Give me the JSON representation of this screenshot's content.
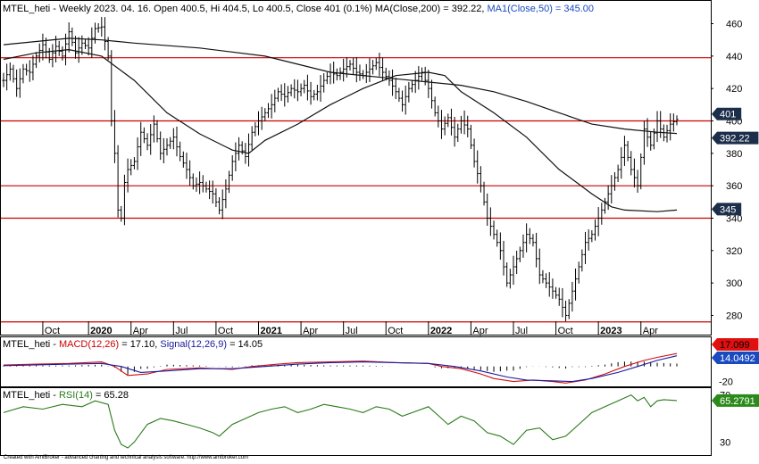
{
  "title": {
    "prefix": "MTEL_heti - Weekly 2023. 04. 16. Open 400.5, Hi 404.5, Lo 400.5, Close 401 (0.1%) ",
    "ma200": "MA(Close,200) = 392.22,",
    "ma50": " MA1(Close,50) = 345.00"
  },
  "macd_title": {
    "prefix": "MTEL_heti - ",
    "macd": "MACD(12,26)",
    "mid": " = 17.10, ",
    "signal": "Signal(12,26,9)",
    "suffix": " = 14.05"
  },
  "rsi_title": {
    "prefix": "MTEL_heti - ",
    "rsi": "RSI(14)",
    "suffix": " = 65.28"
  },
  "footer": "Created with AmiBroker - advanced charting and technical analysis software. http://www.amibroker.com",
  "colors": {
    "price": "#000000",
    "ma": "#111111",
    "hline": "#cc0000",
    "macd": "#d01010",
    "signal": "#1a1aa0",
    "rsi": "#2a7a1a",
    "tag_dark": "#1c2e4a",
    "tag_red": "#e01010",
    "tag_blue": "#1a4ac0",
    "tag_green": "#2a8a1a"
  },
  "chart_data": [
    {
      "type": "candlestick",
      "panel": "price",
      "title": "MTEL_heti - Weekly 2023. 04. 16. Open 400.5, Hi 404.5, Lo 400.5, Close 401 (0.1%) MA(Close,200) = 392.22, MA1(Close,50) = 345.00",
      "ylim": [
        272,
        468
      ],
      "yticks": [
        280,
        300,
        320,
        340,
        360,
        380,
        400,
        420,
        440,
        460
      ],
      "x_labels": [
        "Oct",
        "2020",
        "Apr",
        "Jul",
        "Oct",
        "2021",
        "Apr",
        "Jul",
        "Oct",
        "2022",
        "Apr",
        "Jul",
        "Oct",
        "2023",
        "Apr"
      ],
      "x_label_bold": [
        "2020",
        "2021",
        "2022",
        "2023"
      ],
      "horizontal_lines": [
        439,
        400,
        360,
        340,
        276
      ],
      "close": [
        [
          0,
          425
        ],
        [
          2,
          432
        ],
        [
          4,
          420
        ],
        [
          6,
          432
        ],
        [
          8,
          430
        ],
        [
          10,
          440
        ],
        [
          12,
          447
        ],
        [
          14,
          438
        ],
        [
          16,
          446
        ],
        [
          18,
          440
        ],
        [
          20,
          455
        ],
        [
          22,
          442
        ],
        [
          24,
          448
        ],
        [
          26,
          445
        ],
        [
          28,
          457
        ],
        [
          30,
          458
        ],
        [
          32,
          440
        ],
        [
          33,
          400
        ],
        [
          34,
          380
        ],
        [
          35,
          345
        ],
        [
          36,
          340
        ],
        [
          37,
          362
        ],
        [
          38,
          370
        ],
        [
          40,
          375
        ],
        [
          42,
          393
        ],
        [
          44,
          385
        ],
        [
          46,
          398
        ],
        [
          48,
          380
        ],
        [
          50,
          385
        ],
        [
          52,
          390
        ],
        [
          54,
          378
        ],
        [
          56,
          370
        ],
        [
          58,
          360
        ],
        [
          60,
          362
        ],
        [
          62,
          358
        ],
        [
          64,
          355
        ],
        [
          66,
          345
        ],
        [
          68,
          358
        ],
        [
          70,
          375
        ],
        [
          72,
          385
        ],
        [
          74,
          378
        ],
        [
          76,
          393
        ],
        [
          78,
          400
        ],
        [
          80,
          405
        ],
        [
          82,
          410
        ],
        [
          84,
          418
        ],
        [
          86,
          415
        ],
        [
          88,
          420
        ],
        [
          90,
          418
        ],
        [
          92,
          422
        ],
        [
          94,
          415
        ],
        [
          96,
          418
        ],
        [
          98,
          425
        ],
        [
          100,
          430
        ],
        [
          102,
          428
        ],
        [
          104,
          432
        ],
        [
          106,
          435
        ],
        [
          108,
          430
        ],
        [
          110,
          428
        ],
        [
          112,
          432
        ],
        [
          114,
          436
        ],
        [
          116,
          430
        ],
        [
          118,
          425
        ],
        [
          120,
          418
        ],
        [
          122,
          410
        ],
        [
          124,
          420
        ],
        [
          126,
          425
        ],
        [
          128,
          430
        ],
        [
          130,
          420
        ],
        [
          132,
          405
        ],
        [
          134,
          395
        ],
        [
          136,
          402
        ],
        [
          138,
          390
        ],
        [
          140,
          400
        ],
        [
          142,
          395
        ],
        [
          144,
          375
        ],
        [
          146,
          360
        ],
        [
          148,
          340
        ],
        [
          150,
          330
        ],
        [
          152,
          320
        ],
        [
          154,
          300
        ],
        [
          156,
          310
        ],
        [
          158,
          320
        ],
        [
          160,
          330
        ],
        [
          162,
          325
        ],
        [
          164,
          305
        ],
        [
          166,
          300
        ],
        [
          168,
          295
        ],
        [
          170,
          290
        ],
        [
          172,
          280
        ],
        [
          174,
          295
        ],
        [
          176,
          310
        ],
        [
          178,
          325
        ],
        [
          180,
          330
        ],
        [
          182,
          340
        ],
        [
          184,
          350
        ],
        [
          186,
          360
        ],
        [
          188,
          370
        ],
        [
          190,
          385
        ],
        [
          192,
          370
        ],
        [
          194,
          360
        ],
        [
          196,
          395
        ],
        [
          198,
          385
        ],
        [
          200,
          400
        ],
        [
          202,
          390
        ],
        [
          204,
          398
        ],
        [
          206,
          401
        ]
      ],
      "series": [
        {
          "name": "MA(Close,200)",
          "values": [
            [
              0,
              447
            ],
            [
              10,
              449
            ],
            [
              20,
              451
            ],
            [
              30,
              450
            ],
            [
              40,
              448
            ],
            [
              60,
              445
            ],
            [
              80,
              440
            ],
            [
              100,
              430
            ],
            [
              120,
              426
            ],
            [
              140,
              422
            ],
            [
              150,
              418
            ],
            [
              160,
              412
            ],
            [
              170,
              405
            ],
            [
              180,
              398
            ],
            [
              190,
              395
            ],
            [
              200,
              393
            ],
            [
              206,
              392.22
            ]
          ]
        },
        {
          "name": "MA1(Close,50)",
          "values": [
            [
              0,
              438
            ],
            [
              10,
              442
            ],
            [
              20,
              444
            ],
            [
              30,
              440
            ],
            [
              40,
              425
            ],
            [
              50,
              405
            ],
            [
              60,
              392
            ],
            [
              70,
              382
            ],
            [
              75,
              380
            ],
            [
              80,
              388
            ],
            [
              90,
              398
            ],
            [
              100,
              410
            ],
            [
              110,
              420
            ],
            [
              120,
              428
            ],
            [
              130,
              430
            ],
            [
              135,
              428
            ],
            [
              140,
              418
            ],
            [
              150,
              405
            ],
            [
              160,
              390
            ],
            [
              170,
              370
            ],
            [
              180,
              355
            ],
            [
              186,
              347
            ],
            [
              190,
              345
            ],
            [
              200,
              344
            ],
            [
              206,
              345
            ]
          ]
        }
      ],
      "tags": [
        {
          "label": "401",
          "value": 401
        },
        {
          "label": "392.22",
          "value": 392.22
        },
        {
          "label": "345",
          "value": 345
        }
      ]
    },
    {
      "type": "line",
      "panel": "macd",
      "title": "MTEL_heti - MACD(12,26) = 17.10, Signal(12,26,9) = 14.05",
      "ylim": [
        -24,
        22
      ],
      "yticks": [
        -20
      ],
      "series": [
        {
          "name": "MACD(12,26)",
          "values": [
            [
              0,
              2
            ],
            [
              10,
              3
            ],
            [
              20,
              4
            ],
            [
              30,
              6
            ],
            [
              34,
              0
            ],
            [
              38,
              -12
            ],
            [
              44,
              -10
            ],
            [
              50,
              -4
            ],
            [
              60,
              -2
            ],
            [
              70,
              -4
            ],
            [
              76,
              0
            ],
            [
              84,
              3
            ],
            [
              90,
              5
            ],
            [
              100,
              6
            ],
            [
              110,
              7
            ],
            [
              120,
              5
            ],
            [
              130,
              4
            ],
            [
              134,
              0
            ],
            [
              140,
              -3
            ],
            [
              146,
              -10
            ],
            [
              150,
              -16
            ],
            [
              156,
              -20
            ],
            [
              162,
              -18
            ],
            [
              168,
              -20
            ],
            [
              172,
              -22
            ],
            [
              178,
              -18
            ],
            [
              184,
              -10
            ],
            [
              190,
              0
            ],
            [
              196,
              8
            ],
            [
              200,
              12
            ],
            [
              206,
              17.1
            ]
          ]
        },
        {
          "name": "Signal(12,26,9)",
          "values": [
            [
              0,
              1
            ],
            [
              10,
              2
            ],
            [
              20,
              3
            ],
            [
              30,
              4
            ],
            [
              36,
              0
            ],
            [
              42,
              -8
            ],
            [
              50,
              -6
            ],
            [
              60,
              -3
            ],
            [
              70,
              -3
            ],
            [
              80,
              0
            ],
            [
              90,
              3
            ],
            [
              100,
              5
            ],
            [
              110,
              6
            ],
            [
              120,
              5
            ],
            [
              130,
              4
            ],
            [
              138,
              0
            ],
            [
              146,
              -6
            ],
            [
              154,
              -14
            ],
            [
              160,
              -18
            ],
            [
              168,
              -19
            ],
            [
              174,
              -20
            ],
            [
              180,
              -16
            ],
            [
              188,
              -8
            ],
            [
              194,
              0
            ],
            [
              200,
              8
            ],
            [
              206,
              14.05
            ]
          ]
        }
      ],
      "tags": [
        {
          "label": "17.099",
          "value": 17.1
        },
        {
          "label": "14.0492",
          "value": 14.05
        }
      ]
    },
    {
      "type": "line",
      "panel": "rsi",
      "title": "MTEL_heti - RSI(14) = 65.28",
      "ylim": [
        22,
        72
      ],
      "yticks": [
        30,
        70
      ],
      "series": [
        {
          "name": "RSI(14)",
          "values": [
            [
              0,
              55
            ],
            [
              6,
              60
            ],
            [
              12,
              58
            ],
            [
              18,
              62
            ],
            [
              24,
              60
            ],
            [
              28,
              65
            ],
            [
              32,
              62
            ],
            [
              34,
              40
            ],
            [
              36,
              28
            ],
            [
              38,
              25
            ],
            [
              40,
              30
            ],
            [
              44,
              45
            ],
            [
              48,
              50
            ],
            [
              52,
              48
            ],
            [
              56,
              45
            ],
            [
              60,
              42
            ],
            [
              64,
              38
            ],
            [
              66,
              35
            ],
            [
              70,
              45
            ],
            [
              74,
              50
            ],
            [
              78,
              55
            ],
            [
              82,
              58
            ],
            [
              86,
              60
            ],
            [
              90,
              55
            ],
            [
              94,
              58
            ],
            [
              98,
              62
            ],
            [
              102,
              60
            ],
            [
              106,
              58
            ],
            [
              110,
              55
            ],
            [
              114,
              60
            ],
            [
              118,
              58
            ],
            [
              122,
              52
            ],
            [
              126,
              56
            ],
            [
              130,
              60
            ],
            [
              134,
              50
            ],
            [
              136,
              45
            ],
            [
              140,
              52
            ],
            [
              144,
              48
            ],
            [
              148,
              38
            ],
            [
              152,
              35
            ],
            [
              156,
              28
            ],
            [
              160,
              40
            ],
            [
              164,
              42
            ],
            [
              168,
              32
            ],
            [
              172,
              35
            ],
            [
              176,
              45
            ],
            [
              180,
              55
            ],
            [
              184,
              60
            ],
            [
              188,
              65
            ],
            [
              192,
              70
            ],
            [
              194,
              65
            ],
            [
              196,
              68
            ],
            [
              198,
              60
            ],
            [
              200,
              65
            ],
            [
              202,
              66
            ],
            [
              206,
              65.28
            ]
          ]
        }
      ],
      "tags": [
        {
          "label": "65.2791",
          "value": 65.28
        }
      ]
    }
  ]
}
